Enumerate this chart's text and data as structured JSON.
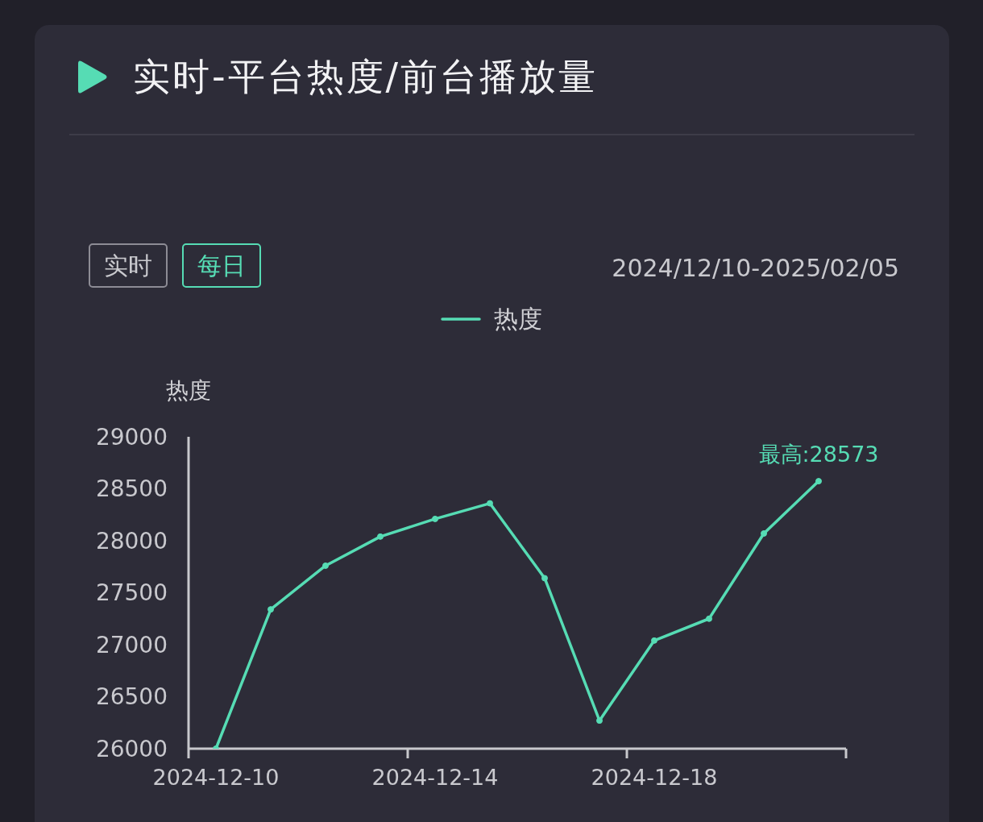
{
  "chart_data": {
    "type": "line",
    "title": "实时-平台热度/前台播放量",
    "subtitle": "2024/12/10-2025/02/05",
    "ylabel": "热度",
    "categories": [
      "2024-12-10",
      null,
      null,
      null,
      "2024-12-14",
      null,
      null,
      null,
      "2024-12-18",
      null,
      null,
      null
    ],
    "series": [
      {
        "name": "热度",
        "color": "#56dcb4",
        "values": [
          26000,
          27340,
          27760,
          28040,
          28210,
          28360,
          27640,
          26270,
          27040,
          27250,
          28070,
          28573
        ]
      }
    ],
    "ylim": [
      26000,
      29000
    ],
    "yticks": [
      26000,
      26500,
      27000,
      27500,
      28000,
      28500,
      29000
    ],
    "grid": false,
    "legend": "top",
    "marker": "circle",
    "line_style": "solid",
    "annotations": [
      "实时",
      "每日",
      {
        "text": "最高:28573",
        "y": 28573
      }
    ]
  }
}
